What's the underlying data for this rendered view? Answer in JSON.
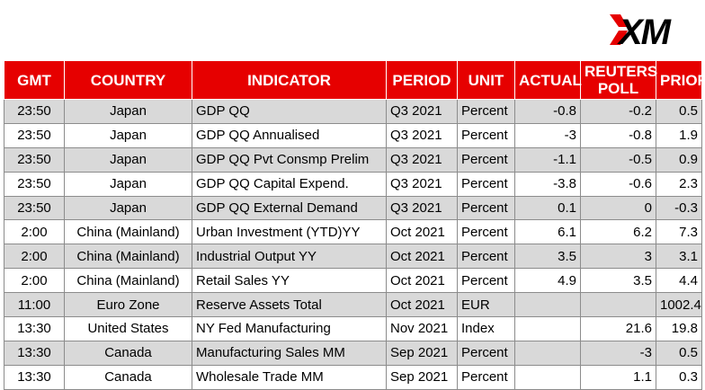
{
  "brand": {
    "logo_text": "XM",
    "header_color": "#e60000"
  },
  "table": {
    "headers": {
      "gmt": "GMT",
      "country": "COUNTRY",
      "indicator": "INDICATOR",
      "period": "PERIOD",
      "unit": "UNIT",
      "actual": "ACTUAL",
      "poll_line1": "REUTERS",
      "poll_line2": "POLL",
      "prior": "PRIOR"
    },
    "rows": [
      {
        "gmt": "23:50",
        "country": "Japan",
        "indicator": "GDP QQ",
        "period": "Q3 2021",
        "unit": "Percent",
        "actual": "-0.8",
        "poll": "-0.2",
        "prior": "0.5"
      },
      {
        "gmt": "23:50",
        "country": "Japan",
        "indicator": "GDP QQ Annualised",
        "period": "Q3 2021",
        "unit": "Percent",
        "actual": "-3",
        "poll": "-0.8",
        "prior": "1.9"
      },
      {
        "gmt": "23:50",
        "country": "Japan",
        "indicator": "GDP QQ Pvt Consmp Prelim",
        "period": "Q3 2021",
        "unit": "Percent",
        "actual": "-1.1",
        "poll": "-0.5",
        "prior": "0.9"
      },
      {
        "gmt": "23:50",
        "country": "Japan",
        "indicator": "GDP QQ Capital Expend.",
        "period": "Q3 2021",
        "unit": "Percent",
        "actual": "-3.8",
        "poll": "-0.6",
        "prior": "2.3"
      },
      {
        "gmt": "23:50",
        "country": "Japan",
        "indicator": "GDP QQ External Demand",
        "period": "Q3 2021",
        "unit": "Percent",
        "actual": "0.1",
        "poll": "0",
        "prior": "-0.3"
      },
      {
        "gmt": "2:00",
        "country": "China (Mainland)",
        "indicator": "Urban Investment (YTD)YY",
        "period": "Oct 2021",
        "unit": "Percent",
        "actual": "6.1",
        "poll": "6.2",
        "prior": "7.3"
      },
      {
        "gmt": "2:00",
        "country": "China (Mainland)",
        "indicator": "Industrial Output YY",
        "period": "Oct 2021",
        "unit": "Percent",
        "actual": "3.5",
        "poll": "3",
        "prior": "3.1"
      },
      {
        "gmt": "2:00",
        "country": "China (Mainland)",
        "indicator": "Retail Sales YY",
        "period": "Oct 2021",
        "unit": "Percent",
        "actual": "4.9",
        "poll": "3.5",
        "prior": "4.4"
      },
      {
        "gmt": "11:00",
        "country": "Euro Zone",
        "indicator": "Reserve Assets Total",
        "period": "Oct 2021",
        "unit": "EUR",
        "actual": "",
        "poll": "",
        "prior": "1002.4"
      },
      {
        "gmt": "13:30",
        "country": "United States",
        "indicator": "NY Fed Manufacturing",
        "period": "Nov 2021",
        "unit": "Index",
        "actual": "",
        "poll": "21.6",
        "prior": "19.8"
      },
      {
        "gmt": "13:30",
        "country": "Canada",
        "indicator": "Manufacturing Sales MM",
        "period": "Sep 2021",
        "unit": "Percent",
        "actual": "",
        "poll": "-3",
        "prior": "0.5"
      },
      {
        "gmt": "13:30",
        "country": "Canada",
        "indicator": "Wholesale Trade MM",
        "period": "Sep 2021",
        "unit": "Percent",
        "actual": "",
        "poll": "1.1",
        "prior": "0.3"
      }
    ]
  }
}
